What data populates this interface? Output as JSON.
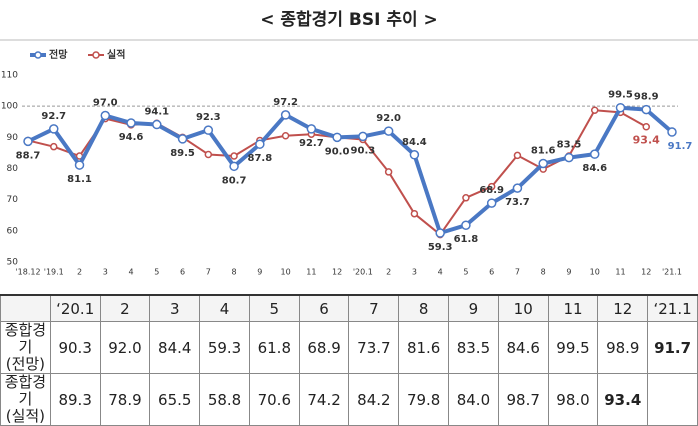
{
  "chart_data": {
    "type": "line",
    "title": "< 종합경기 BSI 추이 >",
    "categories": [
      "'18.12",
      "'19.1",
      "2",
      "3",
      "4",
      "5",
      "6",
      "7",
      "8",
      "9",
      "10",
      "11",
      "12",
      "'20.1",
      "2",
      "3",
      "4",
      "5",
      "6",
      "7",
      "8",
      "9",
      "10",
      "11",
      "12",
      "'21.1"
    ],
    "series": [
      {
        "name": "전망",
        "color": "#4a78c4",
        "values": [
          88.7,
          92.7,
          81.1,
          97.0,
          94.6,
          94.1,
          89.5,
          92.3,
          80.7,
          87.8,
          97.2,
          92.7,
          90.0,
          90.3,
          92.0,
          84.4,
          59.3,
          61.8,
          68.9,
          73.7,
          81.6,
          83.5,
          84.6,
          99.5,
          98.9,
          91.7
        ],
        "value_labels": [
          "88.7",
          "92.7",
          "81.1",
          "97.0",
          "94.6",
          "94.1",
          "89.5",
          "92.3",
          "80.7",
          "87.8",
          "97.2",
          "92.7",
          "90.0",
          "90.3",
          "92.0",
          "84.4",
          "59.3",
          "61.8",
          "68.9",
          "73.7",
          "81.6",
          "83.5",
          "84.6",
          "99.5",
          "98.9",
          "91.7"
        ]
      },
      {
        "name": "실적",
        "color": "#c0504d",
        "values": [
          89,
          87,
          84,
          96,
          94,
          94.5,
          90,
          84.5,
          84,
          89,
          90.5,
          91,
          90,
          89.3,
          78.9,
          65.5,
          58.8,
          70.6,
          74.2,
          84.2,
          79.8,
          84.0,
          98.7,
          98.0,
          93.4,
          null
        ],
        "value_labels": [
          null,
          null,
          null,
          null,
          null,
          null,
          null,
          null,
          null,
          null,
          null,
          null,
          null,
          null,
          null,
          null,
          null,
          null,
          null,
          null,
          null,
          null,
          null,
          null,
          "93.4",
          null
        ]
      }
    ],
    "ylim": [
      50,
      110
    ],
    "yticks": [
      50,
      60,
      70,
      80,
      90,
      100,
      110
    ],
    "reference_line": 100,
    "legend": "top-left"
  },
  "table": {
    "header": [
      null,
      "‘20.1",
      "2",
      "3",
      "4",
      "5",
      "6",
      "7",
      "8",
      "9",
      "10",
      "11",
      "12",
      "‘21.1"
    ],
    "rows": [
      [
        "종합경기\n(전망)",
        "90.3",
        "92.0",
        "84.4",
        "59.3",
        "61.8",
        "68.9",
        "73.7",
        "81.6",
        "83.5",
        "84.6",
        "99.5",
        "98.9",
        "91.7"
      ],
      [
        "종합경기\n(실적)",
        "89.3",
        "78.9",
        "65.5",
        "58.8",
        "70.6",
        "74.2",
        "84.2",
        "79.8",
        "84.0",
        "98.7",
        "98.0",
        "93.4",
        null
      ]
    ]
  }
}
